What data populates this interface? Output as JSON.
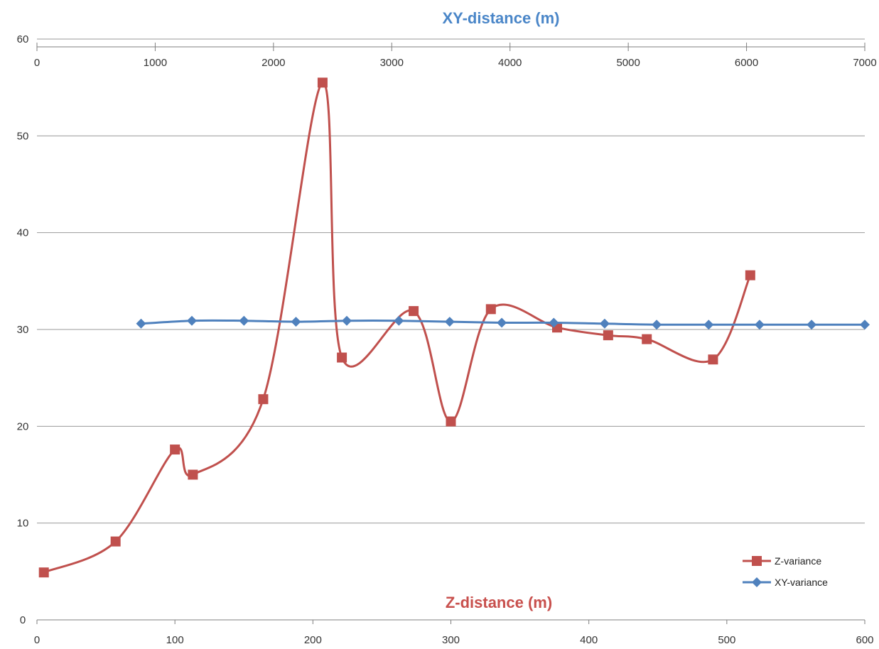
{
  "chart_data": {
    "type": "line",
    "smooth": true,
    "grid": "horizontal",
    "legend_position": "bottom-right",
    "title": "",
    "x_top": {
      "label": "XY-distance (m)",
      "range": [
        0,
        7000
      ],
      "ticks": [
        "0",
        "1000",
        "2000",
        "3000",
        "4000",
        "5000",
        "6000",
        "7000"
      ],
      "color": "#4a86c8"
    },
    "x_bottom": {
      "label": "Z-distance (m)",
      "range": [
        0,
        600
      ],
      "ticks": [
        "0",
        "100",
        "200",
        "300",
        "400",
        "500",
        "600"
      ],
      "color": "#c8504d"
    },
    "y": {
      "range": [
        0,
        60
      ],
      "ticks": [
        "0",
        "10",
        "20",
        "30",
        "40",
        "50",
        "60"
      ]
    },
    "series": [
      {
        "name": "Z-variance",
        "axis": "bottom",
        "marker": "square",
        "color": "#c0504d",
        "points": [
          [
            5,
            4.9
          ],
          [
            57,
            8.1
          ],
          [
            100,
            17.6
          ],
          [
            113,
            15.0
          ],
          [
            164,
            22.8
          ],
          [
            207,
            55.5
          ],
          [
            221,
            27.1
          ],
          [
            273,
            31.9
          ],
          [
            300,
            20.5
          ],
          [
            329,
            32.1
          ],
          [
            377,
            30.2
          ],
          [
            414,
            29.4
          ],
          [
            442,
            29.0
          ],
          [
            490,
            26.9
          ],
          [
            517,
            35.6
          ]
        ]
      },
      {
        "name": "XY-variance",
        "axis": "top",
        "marker": "diamond",
        "color": "#4f81bd",
        "points": [
          [
            880,
            30.6
          ],
          [
            1310,
            30.9
          ],
          [
            1750,
            30.9
          ],
          [
            2190,
            30.8
          ],
          [
            2620,
            30.9
          ],
          [
            3060,
            30.9
          ],
          [
            3490,
            30.8
          ],
          [
            3930,
            30.7
          ],
          [
            4370,
            30.7
          ],
          [
            4800,
            30.6
          ],
          [
            5240,
            30.5
          ],
          [
            5680,
            30.5
          ],
          [
            6110,
            30.5
          ],
          [
            6550,
            30.5
          ],
          [
            7000,
            30.5
          ]
        ]
      }
    ]
  }
}
